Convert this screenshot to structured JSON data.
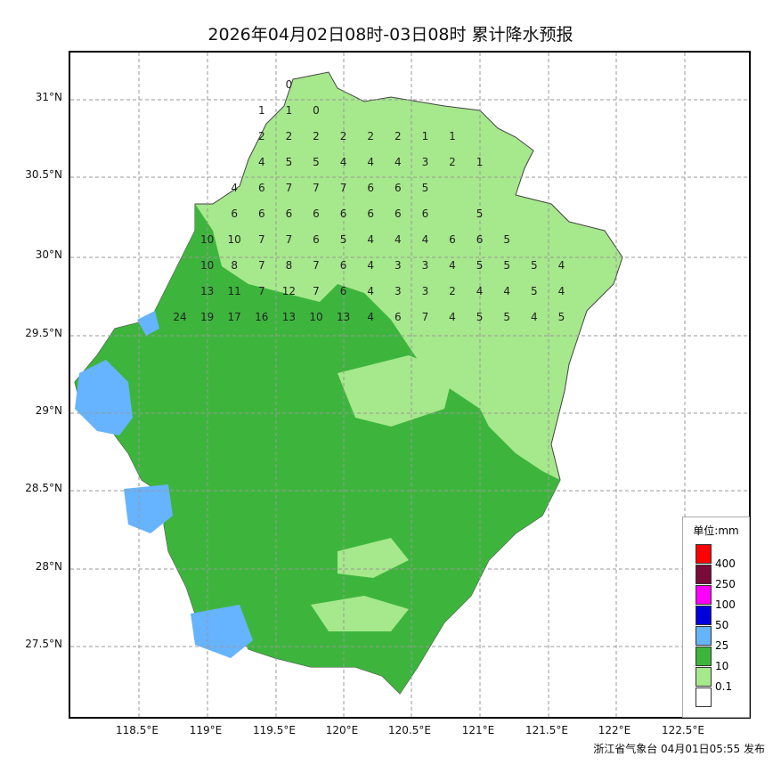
{
  "title": "2026年04月02日08时-03日08时 累计降水预报",
  "footer": "浙江省气象台 04月01日05:55 发布",
  "lat_labels": [
    "31°N",
    "30.5°N",
    "30°N",
    "29.5°N",
    "29°N",
    "28.5°N",
    "28°N",
    "27.5°N"
  ],
  "lon_labels": [
    "118.5°E",
    "119°E",
    "119.5°E",
    "120°E",
    "120.5°E",
    "121°E",
    "121.5°E",
    "122°E",
    "122.5°E"
  ],
  "legend": {
    "title": "单位:mm",
    "items": [
      {
        "label": "400",
        "color": "#ff0000"
      },
      {
        "label": "250",
        "color": "#7a0a3a"
      },
      {
        "label": "100",
        "color": "#ff00ff"
      },
      {
        "label": "50",
        "color": "#0000dd"
      },
      {
        "label": "25",
        "color": "#66b3ff"
      },
      {
        "label": "10",
        "color": "#3db53d"
      },
      {
        "label": "0.1",
        "color": "#a6e88c"
      },
      {
        "label": "",
        "color": "#ffffff"
      }
    ]
  },
  "colors": {
    "light_green": "#a6e88c",
    "green": "#3db53d",
    "blue": "#66b3ff"
  },
  "grid_values": [
    [
      0,
      0,
      0,
      0,
      "0",
      0,
      0,
      0,
      0,
      0,
      0,
      0,
      0,
      0,
      0
    ],
    [
      0,
      0,
      0,
      "1",
      "1",
      "0",
      0,
      0,
      0,
      0,
      0,
      0,
      0,
      0,
      0
    ],
    [
      0,
      0,
      0,
      "2",
      "2",
      "2",
      "2",
      "2",
      "2",
      "1",
      "1",
      0,
      0,
      0,
      0
    ],
    [
      0,
      0,
      0,
      "4",
      "5",
      "5",
      "4",
      "4",
      "4",
      "3",
      "2",
      "1",
      0,
      0,
      0
    ],
    [
      0,
      0,
      "4",
      "6",
      "7",
      "7",
      "7",
      "6",
      "6",
      "5",
      0,
      0,
      0,
      0,
      0
    ],
    [
      0,
      0,
      "6",
      "6",
      "6",
      "6",
      "6",
      "6",
      "6",
      "6",
      0,
      "5",
      0,
      0,
      0
    ],
    [
      0,
      "10",
      "10",
      "7",
      "7",
      "6",
      "5",
      "4",
      "4",
      "4",
      "6",
      "6",
      "5",
      0,
      0
    ],
    [
      0,
      "10",
      "8",
      "7",
      "8",
      "7",
      "6",
      "4",
      "3",
      "3",
      "4",
      "5",
      "5",
      "5",
      "4"
    ],
    [
      0,
      "13",
      "11",
      "7",
      "12",
      "7",
      "6",
      "4",
      "3",
      "3",
      "2",
      "4",
      "4",
      "5",
      "4"
    ],
    [
      "24",
      "19",
      "17",
      "16",
      "13",
      "10",
      "13",
      "4",
      "6",
      "7",
      "4",
      "5",
      "5",
      "4",
      "5"
    ]
  ]
}
